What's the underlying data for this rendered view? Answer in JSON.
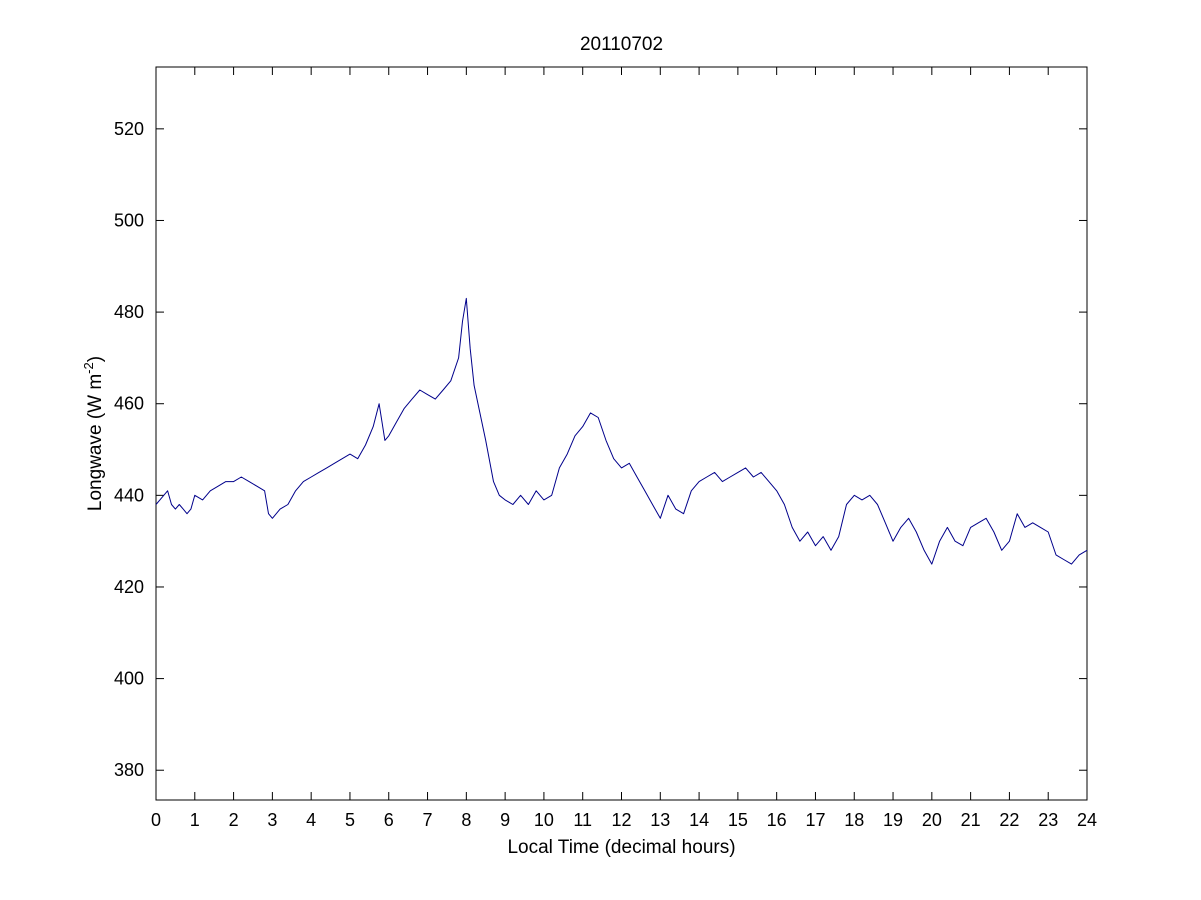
{
  "chart_data": {
    "type": "line",
    "title": "20110702",
    "xlabel": "Local Time (decimal hours)",
    "ylabel_main": "Longwave (W m",
    "ylabel_sup": "-2",
    "ylabel_close": ")",
    "xlim": [
      0,
      24
    ],
    "ylim": [
      373.5,
      533.5
    ],
    "xticks": [
      0,
      1,
      2,
      3,
      4,
      5,
      6,
      7,
      8,
      9,
      10,
      11,
      12,
      13,
      14,
      15,
      16,
      17,
      18,
      19,
      20,
      21,
      22,
      23,
      24
    ],
    "yticks": [
      380,
      400,
      420,
      440,
      460,
      480,
      500,
      520
    ],
    "grid": false,
    "line_color": "#00008b",
    "series": [
      {
        "x": [
          0,
          0.1,
          0.2,
          0.3,
          0.4,
          0.5,
          0.6,
          0.7,
          0.8,
          0.9,
          1.0,
          1.2,
          1.4,
          1.6,
          1.8,
          2.0,
          2.2,
          2.4,
          2.6,
          2.8,
          2.9,
          3.0,
          3.2,
          3.4,
          3.6,
          3.8,
          4.0,
          4.2,
          4.4,
          4.6,
          4.8,
          5.0,
          5.2,
          5.4,
          5.6,
          5.75,
          5.9,
          6.0,
          6.2,
          6.4,
          6.6,
          6.8,
          7.0,
          7.2,
          7.4,
          7.6,
          7.8,
          7.9,
          8.0,
          8.1,
          8.2,
          8.35,
          8.5,
          8.7,
          8.85,
          9.0,
          9.2,
          9.4,
          9.6,
          9.8,
          10.0,
          10.2,
          10.4,
          10.6,
          10.8,
          11.0,
          11.2,
          11.4,
          11.6,
          11.8,
          12.0,
          12.2,
          12.4,
          12.6,
          12.8,
          13.0,
          13.2,
          13.4,
          13.6,
          13.8,
          14.0,
          14.2,
          14.4,
          14.6,
          14.8,
          15.0,
          15.2,
          15.4,
          15.6,
          15.8,
          16.0,
          16.2,
          16.4,
          16.6,
          16.8,
          17.0,
          17.2,
          17.4,
          17.6,
          17.8,
          18.0,
          18.2,
          18.4,
          18.6,
          18.8,
          19.0,
          19.2,
          19.4,
          19.6,
          19.8,
          20.0,
          20.2,
          20.4,
          20.6,
          20.8,
          21.0,
          21.2,
          21.4,
          21.6,
          21.8,
          22.0,
          22.2,
          22.4,
          22.6,
          22.8,
          23.0,
          23.2,
          23.4,
          23.6,
          23.8,
          24.0
        ],
        "values": [
          438,
          439,
          440,
          441,
          438,
          437,
          438,
          437,
          436,
          437,
          440,
          439,
          441,
          442,
          443,
          443,
          444,
          443,
          442,
          441,
          436,
          435,
          437,
          438,
          441,
          443,
          444,
          445,
          446,
          447,
          448,
          449,
          448,
          451,
          455,
          460,
          452,
          453,
          456,
          459,
          461,
          463,
          462,
          461,
          463,
          465,
          470,
          478,
          483,
          472,
          464,
          458,
          452,
          443,
          440,
          439,
          438,
          440,
          438,
          441,
          439,
          440,
          446,
          449,
          453,
          455,
          458,
          457,
          452,
          448,
          446,
          447,
          444,
          441,
          438,
          435,
          440,
          437,
          436,
          441,
          443,
          444,
          445,
          443,
          444,
          445,
          446,
          444,
          445,
          443,
          441,
          438,
          433,
          430,
          432,
          429,
          431,
          428,
          431,
          438,
          440,
          439,
          440,
          438,
          434,
          430,
          433,
          435,
          432,
          428,
          425,
          430,
          433,
          430,
          429,
          433,
          434,
          435,
          432,
          428,
          430,
          436,
          433,
          434,
          433,
          432,
          427,
          426,
          425,
          427,
          428
        ]
      }
    ]
  }
}
